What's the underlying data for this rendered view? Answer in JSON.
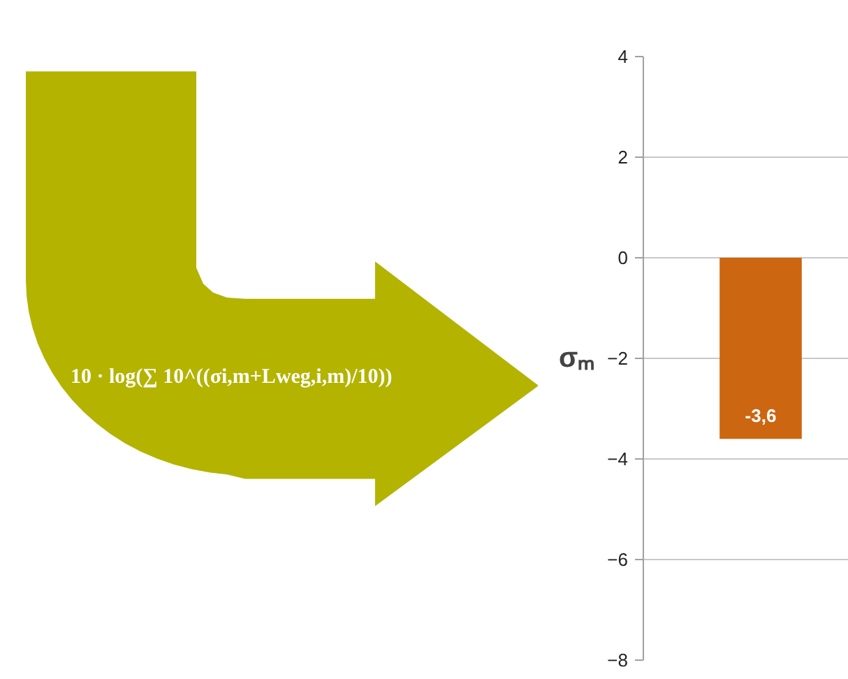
{
  "chart_data": {
    "type": "bar",
    "categories": [
      null
    ],
    "values": [
      -3.6
    ],
    "color": "#cc6611",
    "value_labels": [
      "-3,6"
    ],
    "ylabel": "σₘ",
    "ylim": [
      -8,
      4
    ],
    "yticks": [
      -8,
      -6,
      -4,
      -2,
      0,
      2,
      4
    ],
    "grid": "y",
    "annotations": [
      "10 · log(∑ 10^((σi,m+Lweg,i,m)/10))"
    ]
  }
}
